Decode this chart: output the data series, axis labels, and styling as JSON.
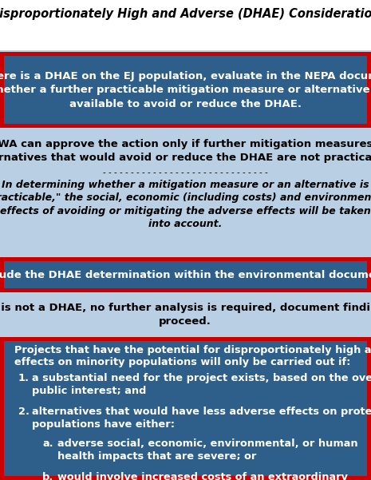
{
  "title": "Disproportionately High and Adverse (DHAE) Consideration",
  "bg_color": "#ffffff",
  "light_blue": "#b8cfe4",
  "dark_blue": "#2d5f8a",
  "red_border": "#cc0000",
  "white": "#ffffff",
  "black": "#000000",
  "s1_text": "If there is a DHAE on the EJ population, evaluate in the NEPA document\nwhether a further practicable mitigation measure or alternative is\navailable to avoid or reduce the DHAE.",
  "s2_text1_line1": "FHWA can approve the action only if further mitigation measures or",
  "s2_text1_line2": "alternatives that would avoid or reduce the DHAE are not practicable.",
  "s2_divider": "- - - - - - - - - - - - - - - - - - - - - - - - - - - - - -",
  "s2_text2": "In determining whether a mitigation measure or an alternative is\n\"practicable,\" the social, economic (including costs) and environmental\neffects of avoiding or mitigating the adverse effects will be taken\ninto account.",
  "s3_text": "Include the DHAE determination within the environmental document.",
  "s4_text": "If there is not a DHAE, no further analysis is required, document findings and\nproceed.",
  "s5_intro_line1": "Projects that have the potential for disproportionately high and adverse",
  "s5_intro_line2": "effects on minority populations will only be carried out if:",
  "s5_item1": "a substantial need for the project exists, based on the overall\npublic interest; and",
  "s5_item2": "alternatives that would have less adverse effects on protected\npopulations have either:",
  "s5_suba": "adverse social, economic, environmental, or human\nhealth impacts that are severe; or",
  "s5_subb": "would involve increased costs of an extraordinary\nmagnitude."
}
